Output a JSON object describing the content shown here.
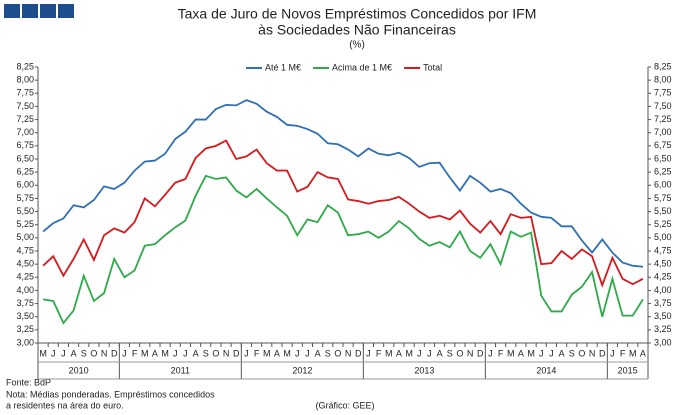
{
  "chart_data": {
    "type": "line",
    "title": [
      "Taxa de Juro de Novos Empréstimos Concedidos por IFM",
      "às Sociedades Não Financeiras"
    ],
    "subtitle": "(%)",
    "categories": [
      "M",
      "J",
      "J",
      "A",
      "S",
      "O",
      "N",
      "D",
      "J",
      "F",
      "M",
      "A",
      "M",
      "J",
      "J",
      "A",
      "S",
      "O",
      "N",
      "D",
      "J",
      "F",
      "M",
      "A",
      "M",
      "J",
      "J",
      "A",
      "S",
      "O",
      "N",
      "D",
      "J",
      "F",
      "M",
      "A",
      "M",
      "J",
      "J",
      "A",
      "S",
      "O",
      "N",
      "D",
      "J",
      "F",
      "M",
      "A",
      "M",
      "J",
      "J",
      "A",
      "S",
      "O",
      "N",
      "D",
      "J",
      "F",
      "M",
      "A"
    ],
    "years": [
      "2010",
      "2011",
      "2012",
      "2013",
      "2014",
      "2015"
    ],
    "series": [
      {
        "name": "Até 1 M€",
        "color": "#2f6fb5",
        "values": [
          5.12,
          5.28,
          5.37,
          5.62,
          5.58,
          5.72,
          5.98,
          5.93,
          6.05,
          6.28,
          6.45,
          6.47,
          6.6,
          6.88,
          7.02,
          7.25,
          7.25,
          7.45,
          7.53,
          7.52,
          7.62,
          7.55,
          7.4,
          7.3,
          7.15,
          7.13,
          7.07,
          6.98,
          6.8,
          6.78,
          6.68,
          6.55,
          6.7,
          6.6,
          6.57,
          6.62,
          6.52,
          6.35,
          6.42,
          6.43,
          6.15,
          5.9,
          6.18,
          6.05,
          5.88,
          5.93,
          5.85,
          5.65,
          5.48,
          5.4,
          5.38,
          5.22,
          5.22,
          4.95,
          4.72,
          4.97,
          4.72,
          4.53,
          4.47,
          4.45
        ]
      },
      {
        "name": "Acima de 1 M€",
        "color": "#2eaa4a",
        "values": [
          3.83,
          3.8,
          3.38,
          3.62,
          4.28,
          3.8,
          3.95,
          4.6,
          4.25,
          4.38,
          4.85,
          4.88,
          5.05,
          5.2,
          5.33,
          5.8,
          6.18,
          6.12,
          6.15,
          5.9,
          5.77,
          5.93,
          5.75,
          5.58,
          5.42,
          5.05,
          5.35,
          5.3,
          5.62,
          5.48,
          5.05,
          5.07,
          5.12,
          5.0,
          5.12,
          5.32,
          5.18,
          4.98,
          4.85,
          4.92,
          4.82,
          5.12,
          4.75,
          4.62,
          4.88,
          4.5,
          5.12,
          5.02,
          5.1,
          3.9,
          3.6,
          3.6,
          3.92,
          4.07,
          4.35,
          3.5,
          4.22,
          3.52,
          3.52,
          3.83
        ]
      },
      {
        "name": "Total",
        "color": "#d7191c",
        "values": [
          4.47,
          4.65,
          4.28,
          4.6,
          4.97,
          4.58,
          5.05,
          5.18,
          5.1,
          5.3,
          5.75,
          5.6,
          5.82,
          6.05,
          6.12,
          6.52,
          6.7,
          6.75,
          6.85,
          6.5,
          6.55,
          6.68,
          6.42,
          6.28,
          6.28,
          5.88,
          5.97,
          6.25,
          6.15,
          6.12,
          5.73,
          5.7,
          5.65,
          5.7,
          5.72,
          5.78,
          5.65,
          5.5,
          5.38,
          5.42,
          5.35,
          5.52,
          5.27,
          5.1,
          5.32,
          5.07,
          5.45,
          5.38,
          5.4,
          4.5,
          4.52,
          4.75,
          4.6,
          4.78,
          4.65,
          4.1,
          4.62,
          4.22,
          4.12,
          4.22
        ]
      }
    ],
    "ylim": [
      3.0,
      8.25
    ],
    "yticks": [
      {
        "value": 3.0,
        "label": "3,00"
      },
      {
        "value": 3.25,
        "label": "3,25"
      },
      {
        "value": 3.5,
        "label": "3,50"
      },
      {
        "value": 3.75,
        "label": "3,75"
      },
      {
        "value": 4.0,
        "label": "4,00"
      },
      {
        "value": 4.25,
        "label": "4,25"
      },
      {
        "value": 4.5,
        "label": "4,50"
      },
      {
        "value": 4.75,
        "label": "4,75"
      },
      {
        "value": 5.0,
        "label": "5,00"
      },
      {
        "value": 5.25,
        "label": "5,25"
      },
      {
        "value": 5.5,
        "label": "5,50"
      },
      {
        "value": 5.75,
        "label": "5,75"
      },
      {
        "value": 6.0,
        "label": "6,00"
      },
      {
        "value": 6.25,
        "label": "6,25"
      },
      {
        "value": 6.5,
        "label": "6,50"
      },
      {
        "value": 6.75,
        "label": "6,75"
      },
      {
        "value": 7.0,
        "label": "7,00"
      },
      {
        "value": 7.25,
        "label": "7,25"
      },
      {
        "value": 7.5,
        "label": "7,50"
      },
      {
        "value": 7.75,
        "label": "7,75"
      },
      {
        "value": 8.0,
        "label": "8,00"
      },
      {
        "value": 8.25,
        "label": "8,25"
      }
    ],
    "y2lim": [
      3.0,
      8.25
    ],
    "y2ticks": [
      {
        "value": 3.0,
        "label": "3,00"
      },
      {
        "value": 3.25,
        "label": "3,25"
      },
      {
        "value": 3.5,
        "label": "3,50"
      },
      {
        "value": 3.75,
        "label": "3,75"
      },
      {
        "value": 4.0,
        "label": "4,00"
      },
      {
        "value": 4.25,
        "label": "4,25"
      },
      {
        "value": 4.5,
        "label": "4,50"
      },
      {
        "value": 4.75,
        "label": "4,75"
      },
      {
        "value": 5.0,
        "label": "5,00"
      },
      {
        "value": 5.25,
        "label": "5,25"
      },
      {
        "value": 5.5,
        "label": "5,50"
      },
      {
        "value": 5.75,
        "label": "5,75"
      },
      {
        "value": 6.0,
        "label": "6,00"
      },
      {
        "value": 6.25,
        "label": "6,25"
      },
      {
        "value": 6.5,
        "label": "6,50"
      },
      {
        "value": 6.75,
        "label": "6,75"
      },
      {
        "value": 7.0,
        "label": "7,00"
      },
      {
        "value": 7.25,
        "label": "7,25"
      },
      {
        "value": 7.5,
        "label": "7,50"
      },
      {
        "value": 7.75,
        "label": "7,75"
      },
      {
        "value": 8.0,
        "label": "8,00"
      },
      {
        "value": 8.25,
        "label": "8,25"
      }
    ],
    "grid": false,
    "source": "Fonte: BdP",
    "note": [
      "Nota: Médias ponderadas.  Empréstimos concedidos",
      "a residentes na área do euro."
    ],
    "credit": "(Gráfico: GEE)"
  }
}
